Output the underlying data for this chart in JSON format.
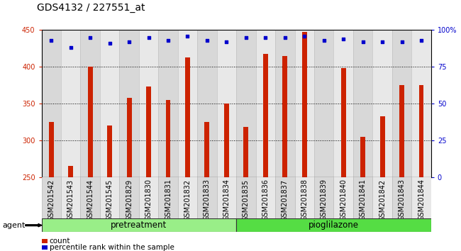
{
  "title": "GDS4132 / 227551_at",
  "categories": [
    "GSM201542",
    "GSM201543",
    "GSM201544",
    "GSM201545",
    "GSM201829",
    "GSM201830",
    "GSM201831",
    "GSM201832",
    "GSM201833",
    "GSM201834",
    "GSM201835",
    "GSM201836",
    "GSM201837",
    "GSM201838",
    "GSM201839",
    "GSM201840",
    "GSM201841",
    "GSM201842",
    "GSM201843",
    "GSM201844"
  ],
  "bar_values": [
    325,
    265,
    400,
    320,
    358,
    373,
    355,
    413,
    325,
    350,
    318,
    418,
    415,
    448,
    250,
    398,
    305,
    333,
    375,
    375
  ],
  "dot_values": [
    93,
    88,
    95,
    91,
    92,
    95,
    93,
    96,
    93,
    92,
    95,
    95,
    95,
    96,
    93,
    94,
    92,
    92,
    92,
    93
  ],
  "bar_color": "#cc2200",
  "dot_color": "#0000cc",
  "ymin": 250,
  "ymax": 450,
  "yticks": [
    250,
    300,
    350,
    400,
    450
  ],
  "y2min": 0,
  "y2max": 100,
  "y2ticks": [
    0,
    25,
    50,
    75,
    100
  ],
  "y2ticklabels": [
    "0",
    "25",
    "50",
    "75",
    "100%"
  ],
  "group1_label": "pretreatment",
  "group2_label": "pioglilazone",
  "group1_count": 10,
  "group2_count": 10,
  "agent_label": "agent",
  "legend_bar_label": "count",
  "legend_dot_label": "percentile rank within the sample",
  "col_bg_even": "#d8d8d8",
  "col_bg_odd": "#e8e8e8",
  "group1_color": "#99ee88",
  "group2_color": "#55dd44",
  "plot_bg": "#ffffff",
  "title_fontsize": 10,
  "tick_fontsize": 7,
  "axis_label_fontsize": 8
}
